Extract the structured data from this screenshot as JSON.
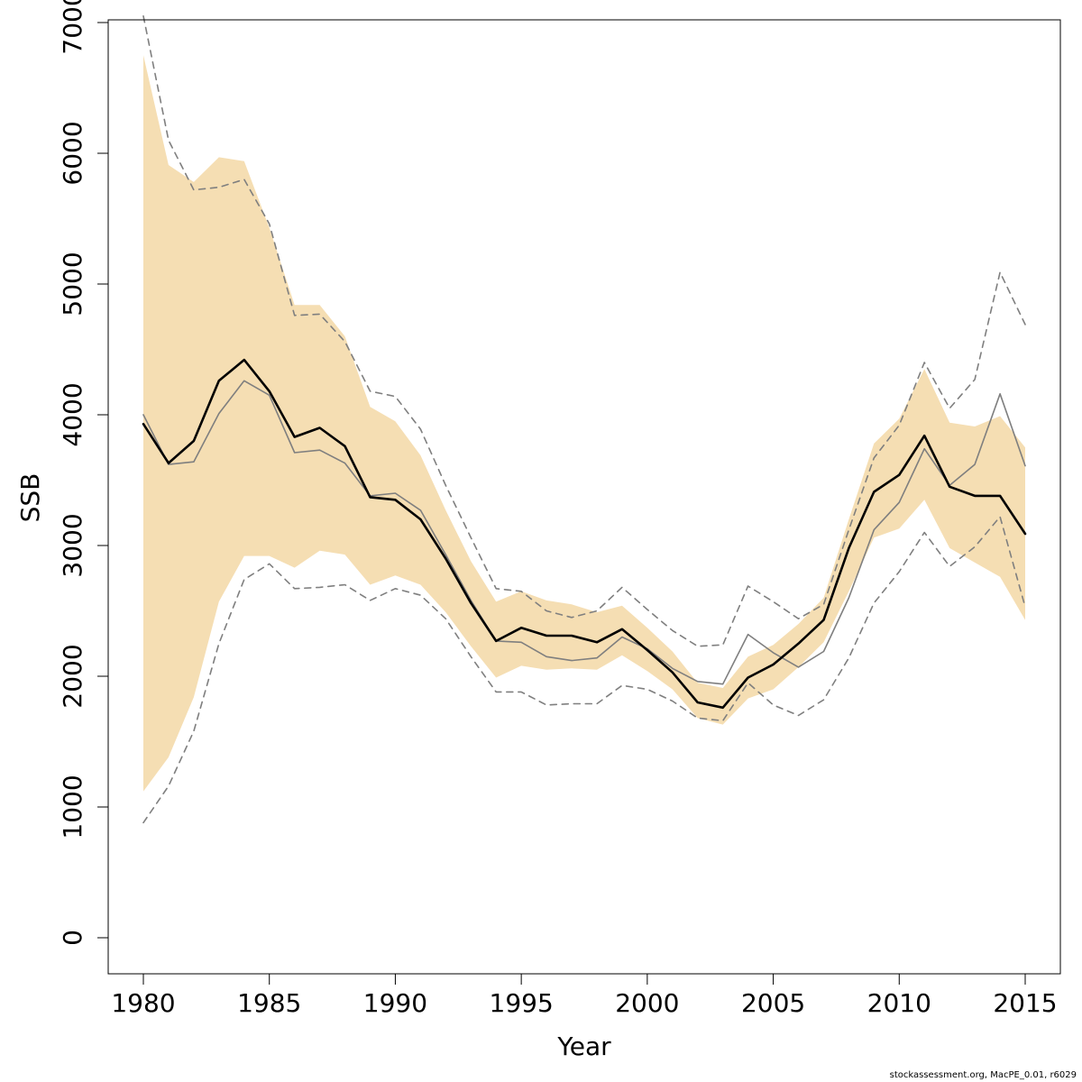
{
  "chart_data": {
    "type": "line",
    "xlabel": "Year",
    "ylabel": "SSB",
    "xlim": [
      1980,
      2015
    ],
    "ylim": [
      0,
      7000
    ],
    "xticks": [
      1980,
      1985,
      1990,
      1995,
      2000,
      2005,
      2010,
      2015
    ],
    "yticks": [
      0,
      1000,
      2000,
      3000,
      4000,
      5000,
      6000,
      7000
    ],
    "x": [
      1980,
      1981,
      1982,
      1983,
      1984,
      1985,
      1986,
      1987,
      1988,
      1989,
      1990,
      1991,
      1992,
      1993,
      1994,
      1995,
      1996,
      1997,
      1998,
      1999,
      2000,
      2001,
      2002,
      2003,
      2004,
      2005,
      2006,
      2007,
      2008,
      2009,
      2010,
      2011,
      2012,
      2013,
      2014,
      2015
    ],
    "band": {
      "color": "#f5deb3",
      "upper": [
        6750,
        5910,
        5780,
        5970,
        5940,
        5430,
        4840,
        4840,
        4600,
        4060,
        3950,
        3690,
        3270,
        2880,
        2570,
        2650,
        2580,
        2550,
        2490,
        2540,
        2370,
        2190,
        1950,
        1910,
        2150,
        2240,
        2400,
        2600,
        3200,
        3780,
        3970,
        4350,
        3940,
        3910,
        3990,
        3750
      ],
      "lower": [
        1120,
        1380,
        1840,
        2570,
        2920,
        2920,
        2830,
        2960,
        2930,
        2700,
        2770,
        2700,
        2490,
        2230,
        1990,
        2080,
        2050,
        2060,
        2050,
        2160,
        2040,
        1900,
        1680,
        1630,
        1830,
        1900,
        2070,
        2260,
        2650,
        3060,
        3130,
        3350,
        2980,
        2870,
        2760,
        2430
      ]
    },
    "series": [
      {
        "color": "#000000",
        "style": "solid-thick",
        "values": [
          3930,
          3630,
          3800,
          4260,
          4420,
          4180,
          3830,
          3900,
          3760,
          3370,
          3350,
          3200,
          2900,
          2560,
          2270,
          2370,
          2310,
          2310,
          2260,
          2360,
          2200,
          2030,
          1800,
          1760,
          1990,
          2090,
          2250,
          2430,
          2980,
          3410,
          3540,
          3840,
          3450,
          3380,
          3380,
          3090
        ]
      },
      {
        "color": "#7f7f7f",
        "style": "solid-thin",
        "values": [
          4000,
          3620,
          3640,
          4010,
          4260,
          4150,
          3710,
          3730,
          3630,
          3380,
          3400,
          3270,
          2930,
          2580,
          2270,
          2260,
          2150,
          2120,
          2140,
          2300,
          2210,
          2060,
          1960,
          1940,
          2320,
          2180,
          2070,
          2190,
          2600,
          3120,
          3330,
          3740,
          3460,
          3620,
          4160,
          3610
        ]
      },
      {
        "color": "#7f7f7f",
        "style": "dashed",
        "values": [
          7050,
          6100,
          5720,
          5740,
          5800,
          5460,
          4760,
          4770,
          4560,
          4180,
          4140,
          3890,
          3460,
          3060,
          2670,
          2650,
          2500,
          2450,
          2500,
          2680,
          2510,
          2350,
          2230,
          2240,
          2690,
          2570,
          2440,
          2550,
          3120,
          3670,
          3920,
          4400,
          4050,
          4270,
          5090,
          4690
        ]
      },
      {
        "color": "#7f7f7f",
        "style": "dashed",
        "values": [
          880,
          1160,
          1580,
          2250,
          2740,
          2860,
          2670,
          2680,
          2700,
          2580,
          2670,
          2620,
          2440,
          2150,
          1880,
          1880,
          1780,
          1790,
          1790,
          1930,
          1900,
          1810,
          1680,
          1660,
          1950,
          1780,
          1700,
          1820,
          2140,
          2560,
          2800,
          3100,
          2840,
          2990,
          3220,
          2530
        ]
      }
    ]
  },
  "footer": {
    "credit": "stockassessment.org, MacPE_0.01, r6029"
  }
}
